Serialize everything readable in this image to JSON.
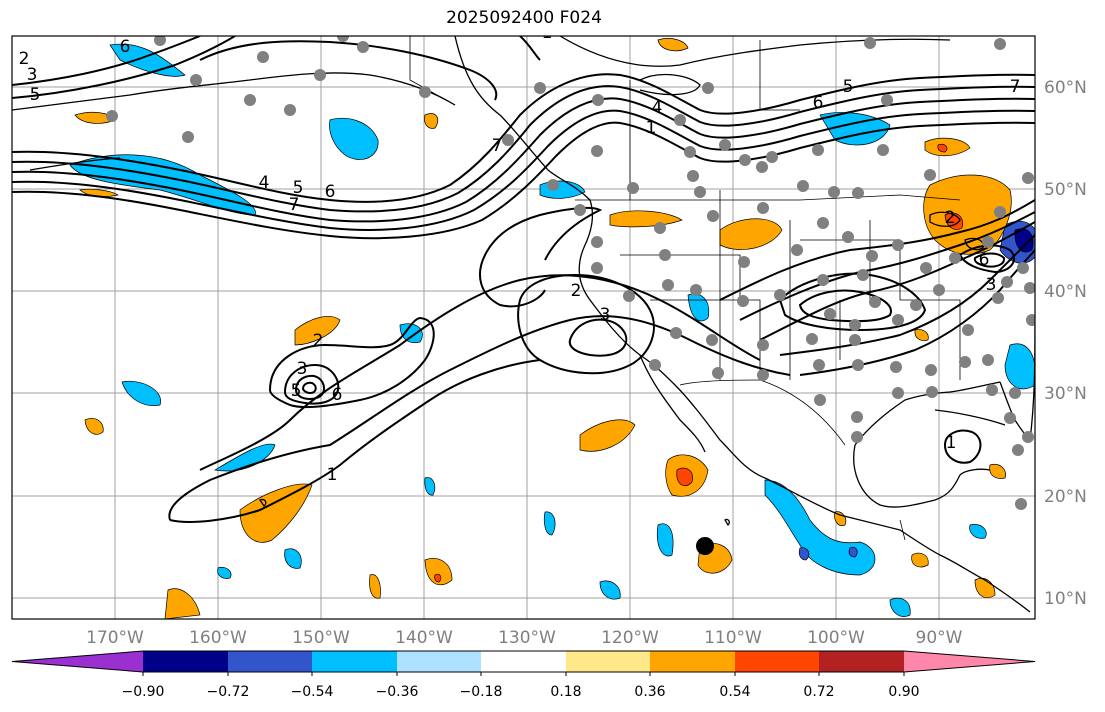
{
  "title": "2025092400 F024",
  "axes": {
    "lon_ticks": [
      "170°W",
      "160°W",
      "150°W",
      "140°W",
      "130°W",
      "120°W",
      "110°W",
      "100°W",
      "90°W"
    ],
    "lat_ticks": [
      "60°N",
      "50°N",
      "40°N",
      "30°N",
      "20°N",
      "10°N"
    ]
  },
  "colorbar": {
    "ticks": [
      "−0.90",
      "−0.72",
      "−0.54",
      "−0.36",
      "−0.18",
      "0.18",
      "0.36",
      "0.54",
      "0.72",
      "0.90"
    ],
    "colors": [
      "#9b30d0",
      "#000088",
      "#3355cc",
      "#00bfff",
      "#aee0ff",
      "#ffffff",
      "#ffe88a",
      "#ffa500",
      "#ff4500",
      "#b22222",
      "#ff88aa"
    ]
  },
  "contour_labels": [
    "2",
    "3",
    "5",
    "6",
    "4",
    "5",
    "6",
    "7",
    "1",
    "4",
    "5",
    "6",
    "7",
    "2",
    "3",
    "1",
    "2",
    "3",
    "5",
    "6",
    "1",
    "6",
    "7",
    "2",
    "3",
    "1"
  ]
}
